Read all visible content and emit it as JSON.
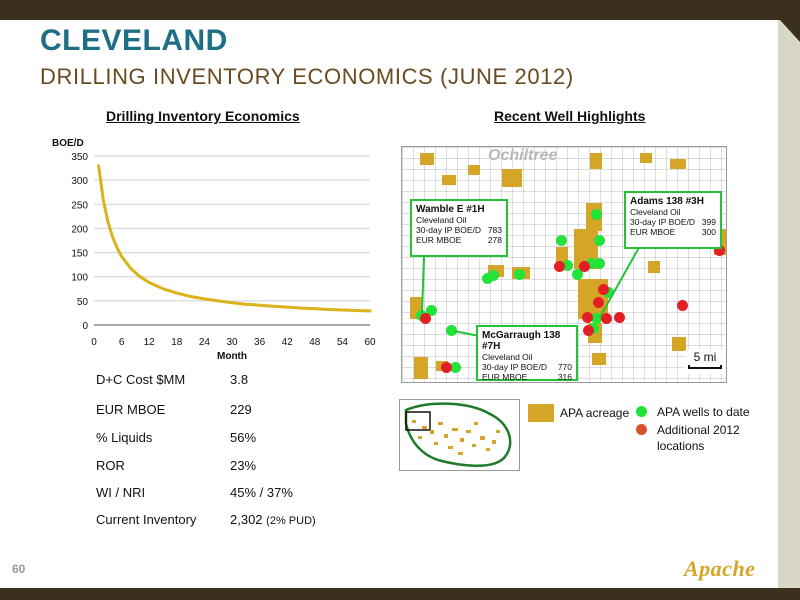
{
  "title": "CLEVELAND",
  "subtitle": "DRILLING INVENTORY ECONOMICS (JUNE 2012)",
  "left_heading": "Drilling Inventory Economics",
  "right_heading": "Recent Well Highlights",
  "chart_data": {
    "type": "line",
    "title": "Drilling Inventory Economics",
    "xlabel": "Month",
    "ylabel": "BOE/D",
    "xlim": [
      0,
      60
    ],
    "ylim": [
      0,
      350
    ],
    "x_ticks": [
      0,
      6,
      12,
      18,
      24,
      30,
      36,
      42,
      48,
      54,
      60
    ],
    "y_ticks": [
      0,
      50,
      100,
      150,
      200,
      250,
      300,
      350
    ],
    "grid": "horizontal",
    "series": [
      {
        "color": "#dcb21a",
        "x": [
          1,
          2,
          3,
          4,
          5,
          6,
          8,
          10,
          12,
          15,
          18,
          21,
          24,
          27,
          30,
          33,
          36,
          39,
          42,
          45,
          48,
          51,
          54,
          57,
          60
        ],
        "y": [
          330,
          260,
          215,
          183,
          160,
          142,
          117,
          100,
          88,
          75,
          66,
          59,
          54,
          50,
          46,
          43,
          41,
          39,
          37,
          35,
          34,
          32,
          31,
          30,
          29
        ]
      }
    ]
  },
  "stats": [
    {
      "label": "D+C Cost $MM",
      "value": "3.8",
      "note": ""
    },
    {
      "label": "EUR MBOE",
      "value": "229",
      "note": ""
    },
    {
      "label": "% Liquids",
      "value": "56%",
      "note": ""
    },
    {
      "label": "ROR",
      "value": "23%",
      "note": ""
    },
    {
      "label": "WI / NRI",
      "value": "45% / 37%",
      "note": ""
    },
    {
      "label": "Current Inventory",
      "value": "2,302",
      "note": "(2% PUD)"
    }
  ],
  "map": {
    "county_label": "Ochiltree",
    "scale_label": "5 mi",
    "callouts": [
      {
        "name": "Wamble E #1H",
        "operator": "Cleveland Oil",
        "ip_label": "30-day IP BOE/D",
        "ip_value": "783",
        "eur_label": "EUR MBOE",
        "eur_value": "278"
      },
      {
        "name": "Adams 138 #3H",
        "operator": "Cleveland Oil",
        "ip_label": "30-day IP BOE/D",
        "ip_value": "399",
        "eur_label": "EUR MBOE",
        "eur_value": "300"
      },
      {
        "name": "McGarraugh 138 #7H",
        "operator": "Cleveland Oil",
        "ip_label": "30-day IP BOE/D",
        "ip_value": "770",
        "eur_label": "EUR MBOE",
        "eur_value": "316"
      }
    ]
  },
  "legend": {
    "acreage": "APA acreage",
    "wells": "APA wells to date",
    "locations_line1": "Additional 2012",
    "locations_line2": "locations"
  },
  "colors": {
    "acreage": "#d4a526",
    "wells": "#22e33a",
    "locations": "#e21f25",
    "title": "#1d6f86",
    "subtitle": "#6a4a1f",
    "curve": "#dcb21a"
  },
  "page_number": "60",
  "logo_text": "Apache"
}
